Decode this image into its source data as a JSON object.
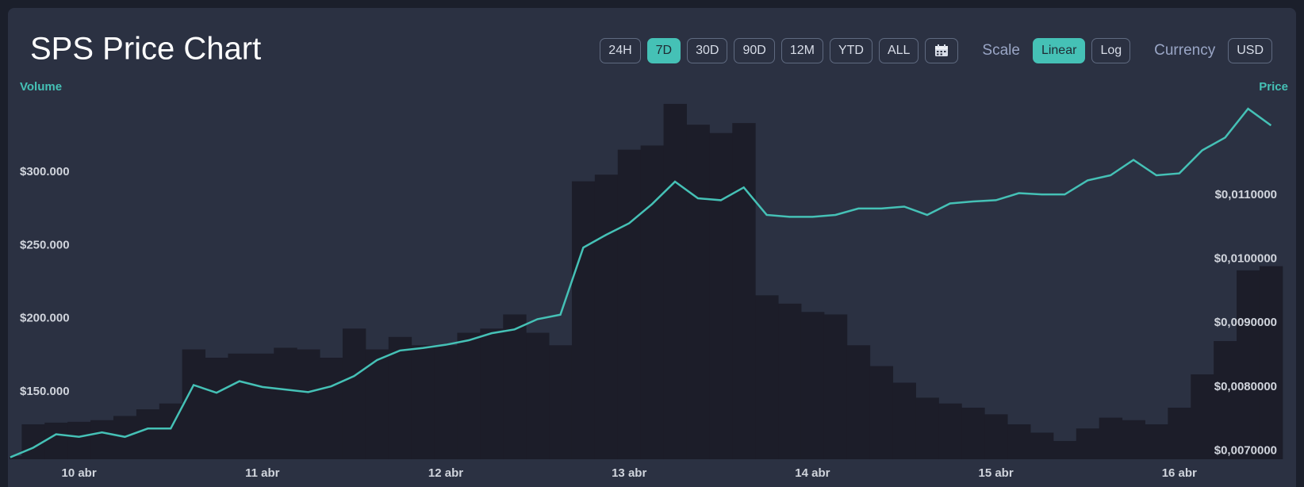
{
  "chart_data": {
    "type": "line",
    "title": "SPS Price Chart",
    "categories": [
      null,
      null,
      null,
      "10 abr",
      null,
      null,
      null,
      null,
      null,
      null,
      null,
      "11 abr",
      null,
      null,
      null,
      null,
      null,
      null,
      null,
      "12 abr",
      null,
      null,
      null,
      null,
      null,
      null,
      null,
      "13 abr",
      null,
      null,
      null,
      null,
      null,
      null,
      null,
      "14 abr",
      null,
      null,
      null,
      null,
      null,
      null,
      null,
      "15 abr",
      null,
      null,
      null,
      null,
      null,
      null,
      null,
      "16 abr",
      null,
      null,
      null,
      null
    ],
    "series": [
      {
        "name": "Volume",
        "type": "bar",
        "color": "#1c1d29",
        "values": [
          106250,
          127840,
          128980,
          129550,
          130680,
          133520,
          138070,
          142050,
          178980,
          173300,
          176140,
          176140,
          180110,
          178980,
          173300,
          193180,
          178980,
          187500,
          181820,
          181820,
          190340,
          193180,
          202840,
          190340,
          181820,
          293750,
          298300,
          315340,
          318180,
          346590,
          332390,
          326700,
          333520,
          215910,
          210230,
          204550,
          202840,
          181820,
          167610,
          156250,
          146020,
          142050,
          139200,
          134660,
          127840,
          122160,
          116480,
          125000,
          132390,
          130680,
          127840,
          139200,
          161930,
          184660,
          232950,
          235800
        ]
      },
      {
        "name": "Price",
        "axis": "y2",
        "color": "#45c1b6",
        "values": [
          0.0069,
          0.00705,
          0.00726,
          0.00722,
          0.00729,
          0.00722,
          0.00735,
          0.00735,
          0.00803,
          0.00791,
          0.00809,
          0.008,
          0.00796,
          0.00792,
          0.00801,
          0.00817,
          0.00842,
          0.00857,
          0.00861,
          0.00866,
          0.00873,
          0.00884,
          0.0089,
          0.00906,
          0.00913,
          0.01018,
          0.01038,
          0.01056,
          0.01086,
          0.01121,
          0.01095,
          0.01092,
          0.01112,
          0.01069,
          0.01066,
          0.01066,
          0.01069,
          0.01079,
          0.01079,
          0.01082,
          0.01069,
          0.01087,
          0.0109,
          0.01092,
          0.01103,
          0.01101,
          0.01101,
          0.01123,
          0.01131,
          0.01155,
          0.01131,
          0.01134,
          0.0117,
          0.0119,
          0.01235,
          0.01209
        ]
      }
    ],
    "ylim": [
      104000,
      352000
    ],
    "yticks": [
      {
        "value": 150000,
        "label": "$150.000"
      },
      {
        "value": 200000,
        "label": "$200.000"
      },
      {
        "value": 250000,
        "label": "$250.000"
      },
      {
        "value": 300000,
        "label": "$300.000"
      }
    ],
    "y2lim": [
      0.00687,
      0.01255
    ],
    "y2ticks": [
      {
        "value": 0.007,
        "label": "$0,0070000"
      },
      {
        "value": 0.008,
        "label": "$0,0080000"
      },
      {
        "value": 0.009,
        "label": "$0,0090000"
      },
      {
        "value": 0.01,
        "label": "$0,0100000"
      },
      {
        "value": 0.011,
        "label": "$0,0110000"
      }
    ],
    "grid": false
  },
  "controls": {
    "ranges": [
      "24H",
      "7D",
      "30D",
      "90D",
      "12M",
      "YTD",
      "ALL"
    ],
    "selected_range": "7D",
    "scale_label": "Scale",
    "scales": [
      "Linear",
      "Log"
    ],
    "selected_scale": "Linear",
    "currency_label": "Currency",
    "currency": "USD"
  }
}
